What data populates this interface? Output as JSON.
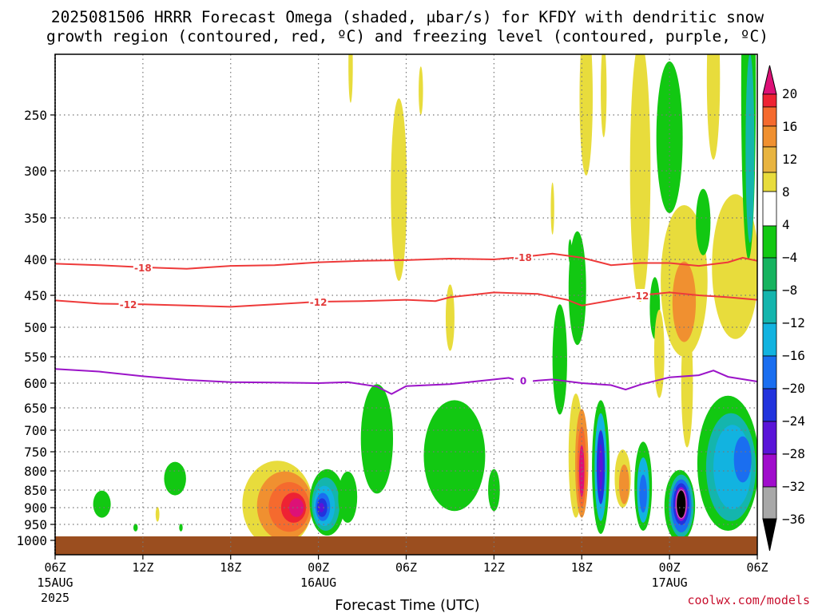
{
  "chart_data": {
    "type": "heatmap",
    "title_line1": "2025081506 HRRR Forecast Omega (shaded, μbar/s) for KFDY with dendritic snow",
    "title_line2": "growth region (contoured, red, ºC) and freezing level (contoured, purple, ºC)",
    "xlabel": "Forecast Time (UTC)",
    "credit": "coolwx.com/models",
    "x_ticks": [
      {
        "h": 0,
        "l1": "06Z",
        "l2": "15AUG",
        "l3": "2025"
      },
      {
        "h": 6,
        "l1": "12Z",
        "l2": "",
        "l3": ""
      },
      {
        "h": 12,
        "l1": "18Z",
        "l2": "",
        "l3": ""
      },
      {
        "h": 18,
        "l1": "00Z",
        "l2": "16AUG",
        "l3": ""
      },
      {
        "h": 24,
        "l1": "06Z",
        "l2": "",
        "l3": ""
      },
      {
        "h": 30,
        "l1": "12Z",
        "l2": "",
        "l3": ""
      },
      {
        "h": 36,
        "l1": "18Z",
        "l2": "",
        "l3": ""
      },
      {
        "h": 42,
        "l1": "00Z",
        "l2": "17AUG",
        "l3": ""
      },
      {
        "h": 48,
        "l1": "06Z",
        "l2": "",
        "l3": ""
      }
    ],
    "y_ticks": [
      250,
      300,
      350,
      400,
      450,
      500,
      550,
      600,
      650,
      700,
      750,
      800,
      850,
      900,
      950,
      1000
    ],
    "xlim": [
      0,
      48
    ],
    "ylim_pressure": [
      200,
      1000
    ],
    "colorbar": {
      "labels": [
        "20",
        "16",
        "12",
        "8",
        "4",
        "−4",
        "−8",
        "−12",
        "−16",
        "−20",
        "−24",
        "−28",
        "−32",
        "−36"
      ],
      "colors": [
        "#dd1177",
        "#ee2233",
        "#f56a2e",
        "#f09030",
        "#e8b440",
        "#e8dc3c",
        "#ffffff",
        "#12c812",
        "#16b35f",
        "#14b5ad",
        "#12b3e0",
        "#1a6ef0",
        "#2233dd",
        "#5a14d8",
        "#a00ccc",
        "#a8a8a8",
        "#000000"
      ]
    },
    "dgz_contours": [
      {
        "label": "-18",
        "points": [
          [
            0,
            406
          ],
          [
            3,
            408
          ],
          [
            6,
            411
          ],
          [
            9,
            413
          ],
          [
            12,
            409
          ],
          [
            15,
            408
          ],
          [
            18,
            404
          ],
          [
            21,
            402
          ],
          [
            24,
            401
          ],
          [
            27,
            399
          ],
          [
            30,
            400
          ],
          [
            32,
            397
          ],
          [
            34,
            393
          ],
          [
            36,
            398
          ],
          [
            38,
            408
          ],
          [
            40,
            405
          ],
          [
            42,
            405
          ],
          [
            44,
            409
          ],
          [
            46,
            404
          ],
          [
            47,
            398
          ],
          [
            48,
            402
          ]
        ],
        "label_pos": [
          [
            6,
            411
          ],
          [
            32,
            397
          ]
        ]
      },
      {
        "label": "-12",
        "points": [
          [
            0,
            458
          ],
          [
            3,
            463
          ],
          [
            6,
            464
          ],
          [
            9,
            466
          ],
          [
            12,
            468
          ],
          [
            15,
            464
          ],
          [
            18,
            460
          ],
          [
            21,
            459
          ],
          [
            24,
            457
          ],
          [
            26,
            459
          ],
          [
            27,
            453
          ],
          [
            30,
            446
          ],
          [
            33,
            448
          ],
          [
            35,
            457
          ],
          [
            36,
            466
          ],
          [
            38,
            458
          ],
          [
            40,
            450
          ],
          [
            42,
            446
          ],
          [
            44,
            450
          ],
          [
            46,
            453
          ],
          [
            48,
            457
          ]
        ],
        "label_pos": [
          [
            5,
            464
          ],
          [
            18,
            460
          ],
          [
            40,
            450
          ]
        ]
      }
    ],
    "freezing_level": {
      "label": "0",
      "points": [
        [
          0,
          573
        ],
        [
          3,
          578
        ],
        [
          6,
          587
        ],
        [
          9,
          594
        ],
        [
          12,
          598
        ],
        [
          15,
          599
        ],
        [
          18,
          600
        ],
        [
          20,
          598
        ],
        [
          22,
          607
        ],
        [
          23,
          622
        ],
        [
          24,
          606
        ],
        [
          27,
          602
        ],
        [
          30,
          593
        ],
        [
          31,
          590
        ],
        [
          32,
          598
        ],
        [
          33,
          595
        ],
        [
          34,
          593
        ],
        [
          36,
          600
        ],
        [
          38,
          604
        ],
        [
          39,
          613
        ],
        [
          40,
          603
        ],
        [
          42,
          589
        ],
        [
          44,
          585
        ],
        [
          45,
          576
        ],
        [
          46,
          588
        ],
        [
          48,
          597
        ]
      ],
      "label_pos": [
        [
          32,
          595
        ]
      ]
    },
    "omega_features": [
      {
        "cx": 3.2,
        "cy": 890,
        "rx": 0.6,
        "ry": 40,
        "v": -6
      },
      {
        "cx": 5.5,
        "cy": 960,
        "rx": 0.15,
        "ry": 12,
        "v": -5
      },
      {
        "cx": 8.2,
        "cy": 820,
        "rx": 0.75,
        "ry": 45,
        "v": -6
      },
      {
        "cx": 8.6,
        "cy": 960,
        "rx": 0.12,
        "ry": 12,
        "v": -5
      },
      {
        "cx": 7.0,
        "cy": 920,
        "rx": 0.13,
        "ry": 22,
        "v": 5
      },
      {
        "cx": 15.2,
        "cy": 890,
        "rx": 2.4,
        "ry": 135,
        "v": 5
      },
      {
        "cx": 15.7,
        "cy": 895,
        "rx": 1.9,
        "ry": 105,
        "v": 9
      },
      {
        "cx": 16.0,
        "cy": 898,
        "rx": 1.4,
        "ry": 75,
        "v": 13
      },
      {
        "cx": 16.3,
        "cy": 900,
        "rx": 0.85,
        "ry": 45,
        "v": 18
      },
      {
        "cx": 16.5,
        "cy": 900,
        "rx": 0.5,
        "ry": 28,
        "v": 21
      },
      {
        "cx": 18.6,
        "cy": 885,
        "rx": 1.2,
        "ry": 100,
        "v": -6
      },
      {
        "cx": 18.5,
        "cy": 890,
        "rx": 0.95,
        "ry": 80,
        "v": -10
      },
      {
        "cx": 18.4,
        "cy": 895,
        "rx": 0.72,
        "ry": 60,
        "v": -14
      },
      {
        "cx": 18.3,
        "cy": 898,
        "rx": 0.5,
        "ry": 42,
        "v": -18
      },
      {
        "cx": 18.25,
        "cy": 900,
        "rx": 0.35,
        "ry": 28,
        "v": -22
      },
      {
        "cx": 18.2,
        "cy": 900,
        "rx": 0.2,
        "ry": 14,
        "v": -26
      },
      {
        "cx": 20.0,
        "cy": 870,
        "rx": 0.65,
        "ry": 75,
        "v": -6
      },
      {
        "cx": 20.2,
        "cy": 210,
        "rx": 0.15,
        "ry": 30,
        "v": 5
      },
      {
        "cx": 21.3,
        "cy": 690,
        "rx": 0.35,
        "ry": 35,
        "v": 5
      },
      {
        "cx": 22.0,
        "cy": 720,
        "rx": 1.1,
        "ry": 140,
        "v": -6
      },
      {
        "cx": 23.5,
        "cy": 320,
        "rx": 0.55,
        "ry": 110,
        "v": 5
      },
      {
        "cx": 25.0,
        "cy": 230,
        "rx": 0.15,
        "ry": 20,
        "v": 5
      },
      {
        "cx": 27.3,
        "cy": 760,
        "rx": 2.1,
        "ry": 150,
        "v": -6
      },
      {
        "cx": 27.0,
        "cy": 485,
        "rx": 0.3,
        "ry": 55,
        "v": 5
      },
      {
        "cx": 28.0,
        "cy": 745,
        "rx": 0.35,
        "ry": 25,
        "v": -6
      },
      {
        "cx": 30.0,
        "cy": 850,
        "rx": 0.4,
        "ry": 60,
        "v": -6
      },
      {
        "cx": 34.5,
        "cy": 555,
        "rx": 0.5,
        "ry": 110,
        "v": -6
      },
      {
        "cx": 35.7,
        "cy": 440,
        "rx": 0.6,
        "ry": 90,
        "v": -6
      },
      {
        "cx": 34.0,
        "cy": 340,
        "rx": 0.12,
        "ry": 30,
        "v": 5
      },
      {
        "cx": 35.2,
        "cy": 390,
        "rx": 0.12,
        "ry": 15,
        "v": -6
      },
      {
        "cx": 35.6,
        "cy": 760,
        "rx": 0.5,
        "ry": 170,
        "v": 5
      },
      {
        "cx": 36.0,
        "cy": 780,
        "rx": 0.45,
        "ry": 150,
        "v": 9
      },
      {
        "cx": 36.0,
        "cy": 790,
        "rx": 0.3,
        "ry": 110,
        "v": 14
      },
      {
        "cx": 36.0,
        "cy": 800,
        "rx": 0.18,
        "ry": 70,
        "v": 21
      },
      {
        "cx": 37.3,
        "cy": 790,
        "rx": 0.6,
        "ry": 190,
        "v": -6
      },
      {
        "cx": 37.3,
        "cy": 790,
        "rx": 0.42,
        "ry": 150,
        "v": -12
      },
      {
        "cx": 37.3,
        "cy": 790,
        "rx": 0.28,
        "ry": 100,
        "v": -20
      },
      {
        "cx": 37.3,
        "cy": 790,
        "rx": 0.14,
        "ry": 60,
        "v": -26
      },
      {
        "cx": 36.3,
        "cy": 235,
        "rx": 0.45,
        "ry": 70,
        "v": 5
      },
      {
        "cx": 37.5,
        "cy": 230,
        "rx": 0.2,
        "ry": 40,
        "v": 5
      },
      {
        "cx": 38.8,
        "cy": 820,
        "rx": 0.55,
        "ry": 80,
        "v": 5
      },
      {
        "cx": 38.9,
        "cy": 835,
        "rx": 0.35,
        "ry": 55,
        "v": 10
      },
      {
        "cx": 40.2,
        "cy": 840,
        "rx": 0.6,
        "ry": 130,
        "v": -6
      },
      {
        "cx": 40.2,
        "cy": 850,
        "rx": 0.42,
        "ry": 95,
        "v": -12
      },
      {
        "cx": 40.2,
        "cy": 860,
        "rx": 0.26,
        "ry": 55,
        "v": -18
      },
      {
        "cx": 40.0,
        "cy": 300,
        "rx": 0.7,
        "ry": 160,
        "v": 5
      },
      {
        "cx": 41.0,
        "cy": 470,
        "rx": 0.35,
        "ry": 50,
        "v": -6
      },
      {
        "cx": 41.3,
        "cy": 545,
        "rx": 0.35,
        "ry": 85,
        "v": 5
      },
      {
        "cx": 42.0,
        "cy": 270,
        "rx": 0.9,
        "ry": 75,
        "v": -6
      },
      {
        "cx": 42.7,
        "cy": 895,
        "rx": 1.05,
        "ry": 110,
        "v": -6
      },
      {
        "cx": 42.8,
        "cy": 895,
        "rx": 0.85,
        "ry": 95,
        "v": -10
      },
      {
        "cx": 42.8,
        "cy": 895,
        "rx": 0.7,
        "ry": 80,
        "v": -16
      },
      {
        "cx": 42.8,
        "cy": 890,
        "rx": 0.55,
        "ry": 62,
        "v": -22
      },
      {
        "cx": 42.8,
        "cy": 890,
        "rx": 0.42,
        "ry": 50,
        "v": -30
      },
      {
        "cx": 42.8,
        "cy": 890,
        "rx": 0.34,
        "ry": 42,
        "v": -38
      },
      {
        "cx": 43.2,
        "cy": 600,
        "rx": 0.4,
        "ry": 140,
        "v": 5
      },
      {
        "cx": 43.0,
        "cy": 430,
        "rx": 1.6,
        "ry": 120,
        "v": 5
      },
      {
        "cx": 43.0,
        "cy": 460,
        "rx": 0.8,
        "ry": 65,
        "v": 9
      },
      {
        "cx": 45.0,
        "cy": 220,
        "rx": 0.45,
        "ry": 70,
        "v": 5
      },
      {
        "cx": 44.3,
        "cy": 355,
        "rx": 0.5,
        "ry": 40,
        "v": -6
      },
      {
        "cx": 46.5,
        "cy": 410,
        "rx": 1.6,
        "ry": 110,
        "v": 5
      },
      {
        "cx": 46.0,
        "cy": 780,
        "rx": 2.1,
        "ry": 190,
        "v": -6
      },
      {
        "cx": 46.2,
        "cy": 790,
        "rx": 1.7,
        "ry": 150,
        "v": -10
      },
      {
        "cx": 46.3,
        "cy": 790,
        "rx": 1.3,
        "ry": 115,
        "v": -14
      },
      {
        "cx": 47.0,
        "cy": 770,
        "rx": 0.6,
        "ry": 60,
        "v": -18
      },
      {
        "cx": 47.4,
        "cy": 230,
        "rx": 0.5,
        "ry": 170,
        "v": -6
      },
      {
        "cx": 47.5,
        "cy": 280,
        "rx": 0.3,
        "ry": 100,
        "v": -10
      }
    ]
  }
}
